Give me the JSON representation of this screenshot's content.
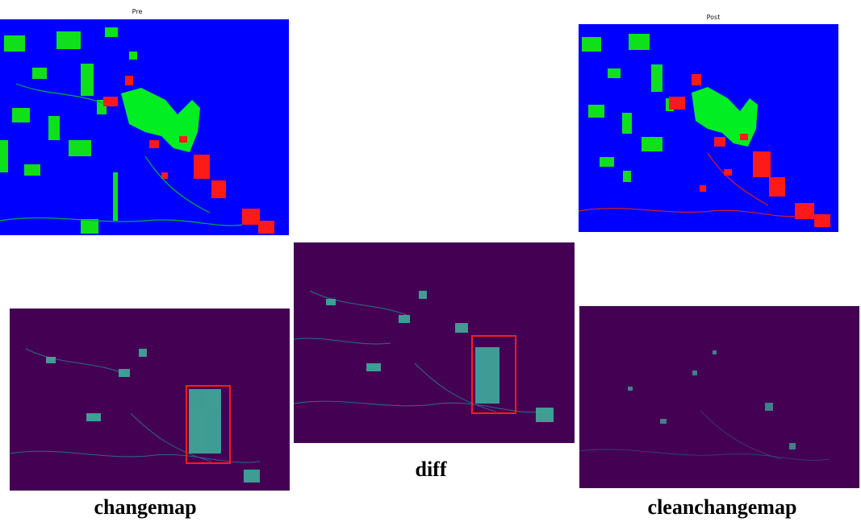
{
  "panels": {
    "pre": {
      "title": "Pre"
    },
    "post": {
      "title": "Post"
    },
    "changemap": {
      "caption": "changemap",
      "has_highlight_box": true
    },
    "diff": {
      "caption": "diff",
      "has_highlight_box": true
    },
    "cleanchangemap": {
      "caption": "cleanchangemap",
      "has_highlight_box": false
    }
  },
  "colors": {
    "water": "#0000ff",
    "vegetation": "#00ff00",
    "urban": "#ff0000",
    "map_background": "#440154",
    "map_feature": "#3fb8a0",
    "highlight_box": "#ff1a1a"
  }
}
